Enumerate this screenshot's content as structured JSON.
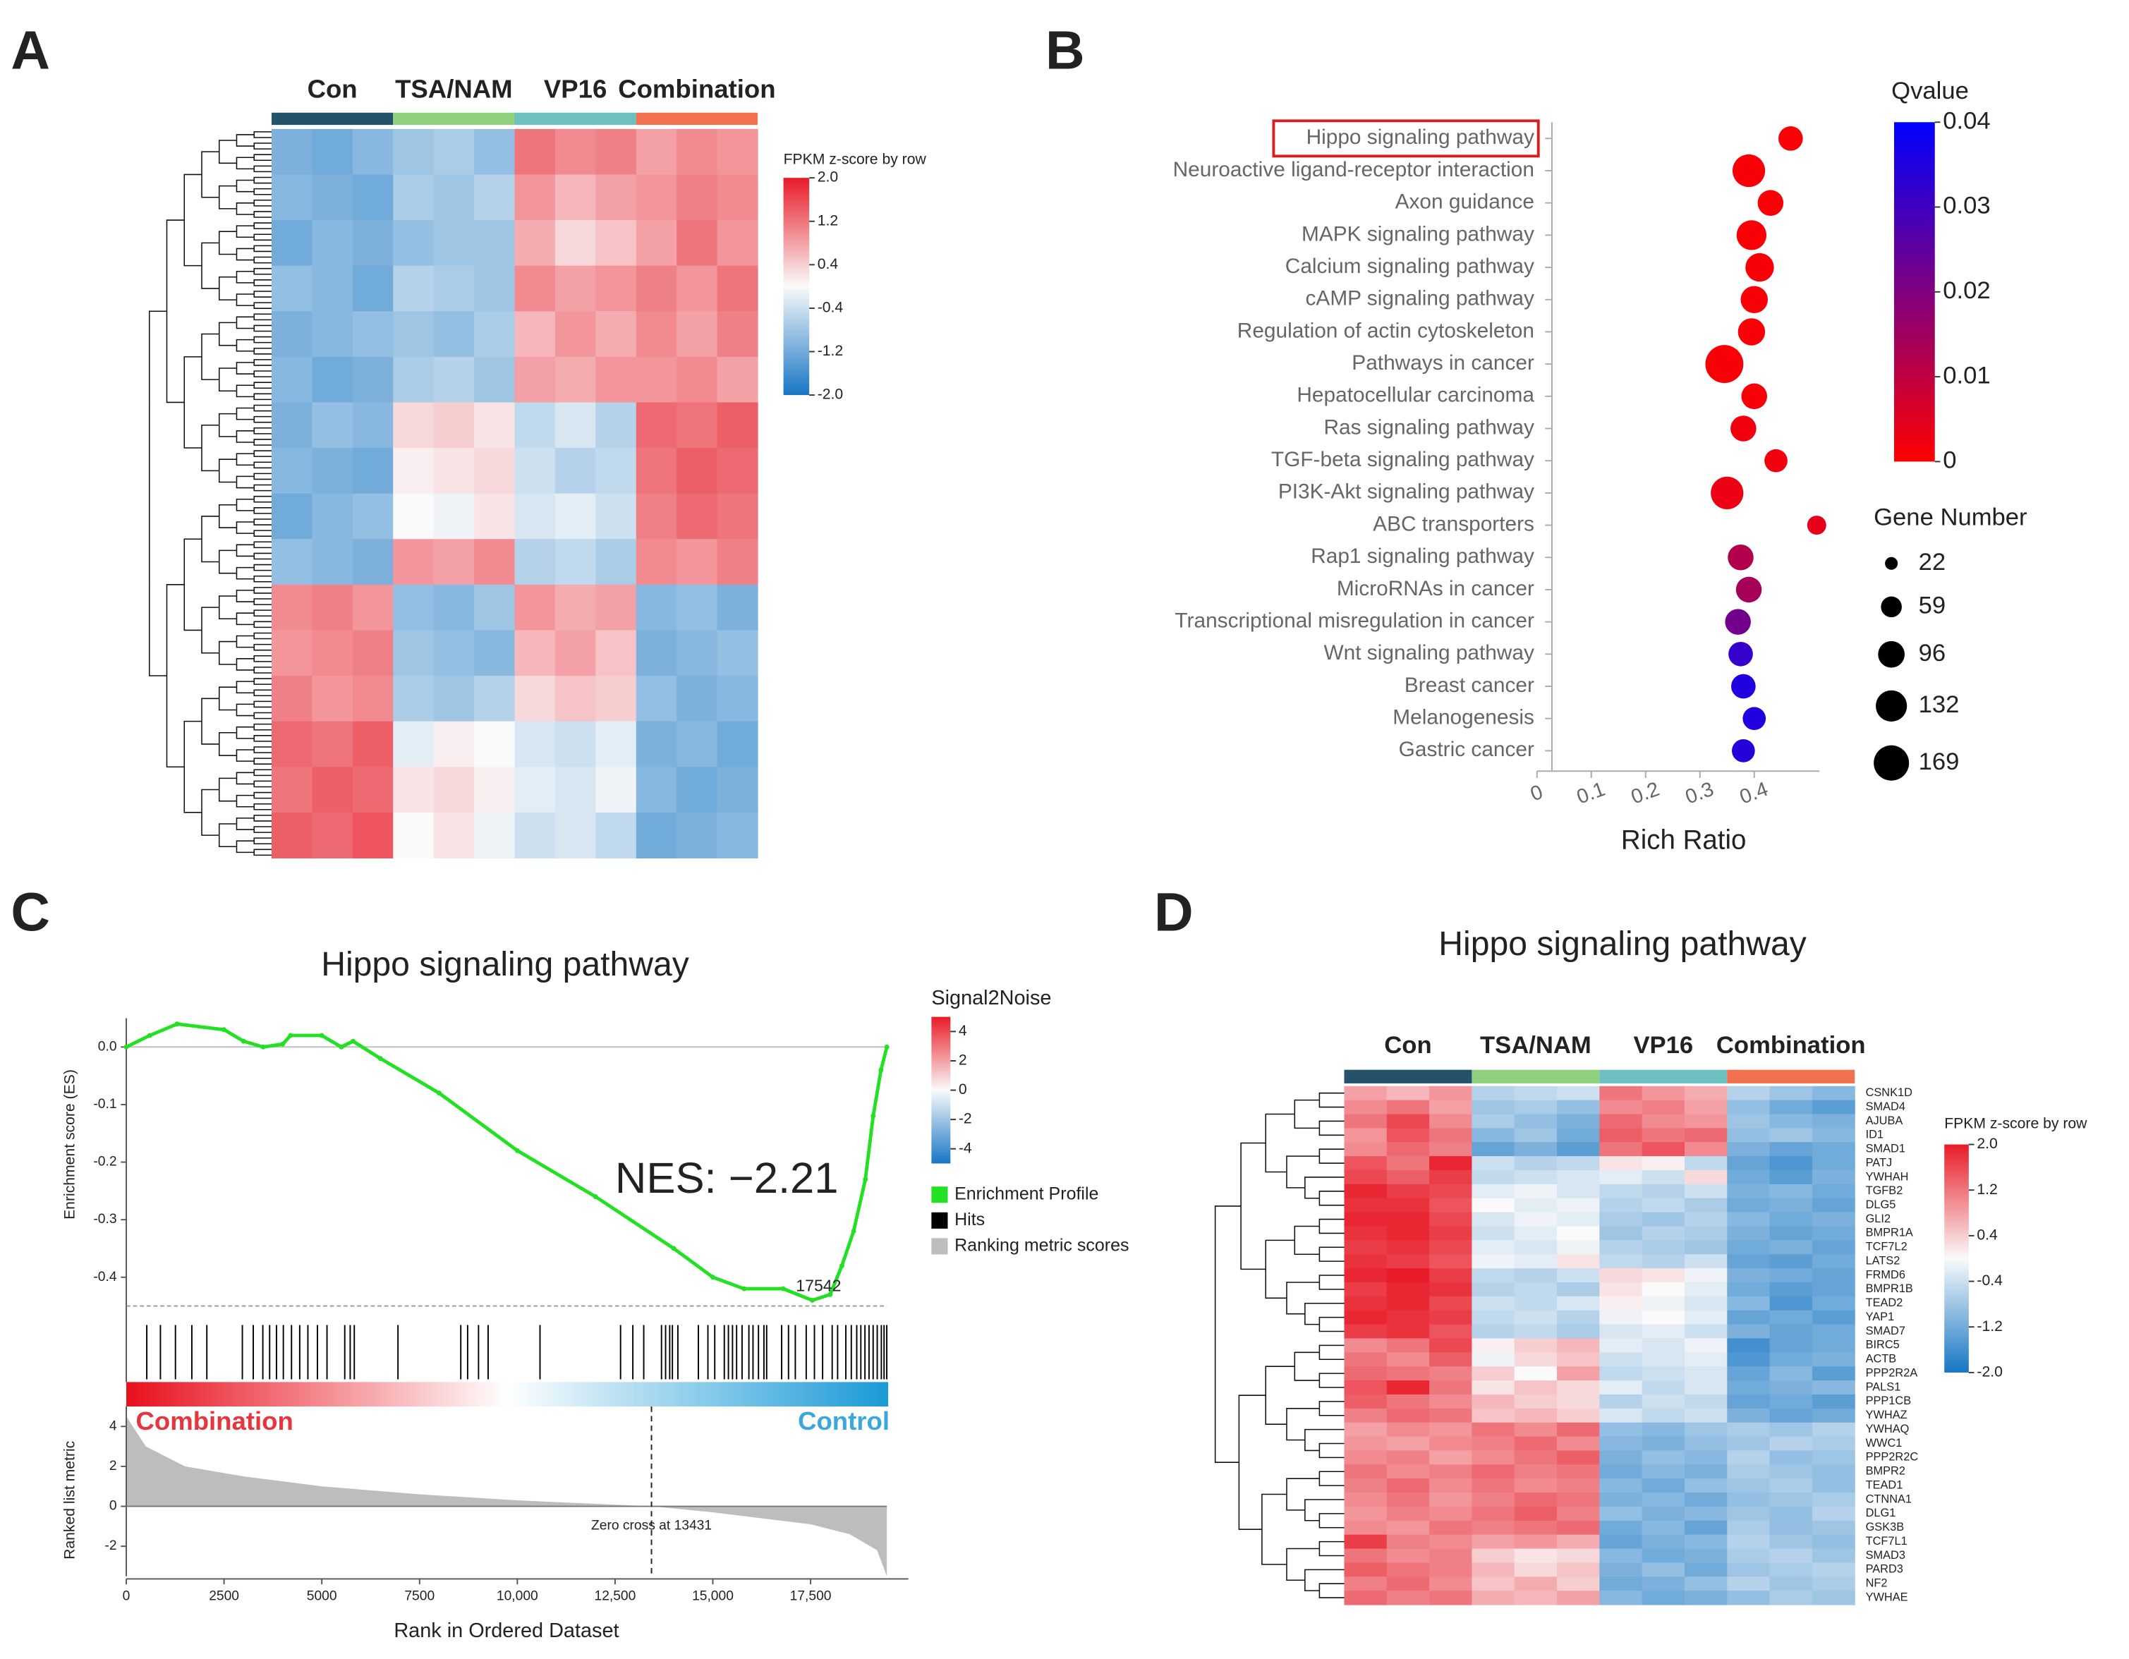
{
  "chart_data": [
    {
      "panel": "A",
      "type": "heatmap",
      "column_groups": [
        {
          "name": "Con",
          "color": "#25526b"
        },
        {
          "name": "TSA/NAM",
          "color": "#8fd07f"
        },
        {
          "name": "VP16",
          "color": "#6cc0c0"
        },
        {
          "name": "Combination",
          "color": "#f3704f"
        }
      ],
      "colorbar_title": "FPKM z-score by row",
      "clim": [
        -2,
        2
      ],
      "cticks": [
        {
          "value": 2,
          "label": "2.0"
        },
        1.2,
        0.4,
        -0.4,
        -1.2,
        {
          "value": -2,
          "label": "-2.0"
        }
      ],
      "values": [
        [
          -1.1,
          -1.2,
          -1.0,
          -0.8,
          -0.7,
          -0.9,
          1.2,
          1.0,
          1.1,
          0.8,
          1.0,
          0.9
        ],
        [
          -1.0,
          -1.1,
          -1.2,
          -0.7,
          -0.8,
          -0.6,
          0.9,
          0.6,
          0.8,
          0.9,
          1.1,
          1.0
        ],
        [
          -1.2,
          -1.0,
          -1.1,
          -0.9,
          -0.8,
          -0.8,
          0.7,
          0.3,
          0.5,
          0.8,
          1.2,
          0.9
        ],
        [
          -0.9,
          -1.0,
          -1.2,
          -0.6,
          -0.7,
          -0.8,
          1.0,
          0.8,
          0.9,
          1.1,
          0.9,
          1.2
        ],
        [
          -1.1,
          -1.0,
          -0.9,
          -0.8,
          -0.9,
          -0.7,
          0.6,
          0.9,
          0.7,
          1.0,
          0.8,
          1.1
        ],
        [
          -1.0,
          -1.2,
          -1.1,
          -0.7,
          -0.6,
          -0.8,
          0.8,
          0.7,
          0.9,
          0.9,
          1.0,
          0.8
        ],
        [
          -1.1,
          -0.9,
          -1.0,
          0.3,
          0.4,
          0.2,
          -0.5,
          -0.3,
          -0.6,
          1.3,
          1.2,
          1.4
        ],
        [
          -1.0,
          -1.1,
          -1.2,
          0.1,
          0.2,
          0.3,
          -0.4,
          -0.6,
          -0.5,
          1.2,
          1.4,
          1.3
        ],
        [
          -1.2,
          -1.0,
          -0.9,
          0.0,
          -0.1,
          0.2,
          -0.3,
          -0.2,
          -0.4,
          1.1,
          1.3,
          1.2
        ],
        [
          -0.9,
          -1.0,
          -1.1,
          0.9,
          0.8,
          1.0,
          -0.6,
          -0.5,
          -0.7,
          1.0,
          0.9,
          1.1
        ],
        [
          1.0,
          1.1,
          0.9,
          -0.9,
          -1.0,
          -0.8,
          0.9,
          0.7,
          0.8,
          -1.0,
          -0.9,
          -1.1
        ],
        [
          0.9,
          1.0,
          1.1,
          -0.8,
          -0.9,
          -1.0,
          0.6,
          0.8,
          0.5,
          -1.1,
          -1.0,
          -0.9
        ],
        [
          1.1,
          0.9,
          1.0,
          -0.7,
          -0.8,
          -0.6,
          0.3,
          0.5,
          0.4,
          -0.9,
          -1.1,
          -1.0
        ],
        [
          1.3,
          1.2,
          1.4,
          -0.2,
          0.1,
          0.0,
          -0.3,
          -0.4,
          -0.2,
          -1.1,
          -1.0,
          -1.2
        ],
        [
          1.2,
          1.4,
          1.3,
          0.2,
          0.3,
          0.1,
          -0.2,
          -0.3,
          -0.1,
          -1.0,
          -1.2,
          -1.1
        ],
        [
          1.4,
          1.3,
          1.5,
          0.0,
          0.2,
          -0.1,
          -0.4,
          -0.3,
          -0.5,
          -1.2,
          -1.1,
          -1.0
        ]
      ]
    },
    {
      "panel": "B",
      "type": "scatter",
      "categories": [
        "Hippo signaling pathway",
        "Neuroactive ligand-receptor interaction",
        "Axon guidance",
        "MAPK signaling pathway",
        "Calcium signaling pathway",
        "cAMP signaling pathway",
        "Regulation of actin cytoskeleton",
        "Pathways in cancer",
        "Hepatocellular carcinoma",
        "Ras signaling pathway",
        "TGF-beta signaling pathway",
        "PI3K-Akt signaling pathway",
        "ABC transporters",
        "Rap1 signaling pathway",
        "MicroRNAs in cancer",
        "Transcriptional misregulation in cancer",
        "Wnt signaling pathway",
        "Breast cancer",
        "Melanogenesis",
        "Gastric cancer"
      ],
      "x": [
        0.467,
        0.39,
        0.43,
        0.395,
        0.41,
        0.4,
        0.395,
        0.345,
        0.4,
        0.38,
        0.44,
        0.35,
        0.515,
        0.375,
        0.39,
        0.37,
        0.375,
        0.38,
        0.4,
        0.38
      ],
      "qvalue": [
        0.001,
        0.001,
        0.001,
        0.001,
        0.001,
        0.001,
        0.001,
        0.001,
        0.001,
        0.002,
        0.002,
        0.003,
        0.004,
        0.012,
        0.014,
        0.022,
        0.032,
        0.035,
        0.035,
        0.034
      ],
      "gene_number": [
        81,
        144,
        90,
        121,
        110,
        100,
        100,
        196,
        90,
        90,
        72,
        144,
        49,
        90,
        90,
        90,
        81,
        81,
        72,
        72
      ],
      "xlim": [
        0,
        0.52
      ],
      "xticks": [
        0,
        0.1,
        0.2,
        0.3,
        0.4
      ],
      "xlabel": "Rich Ratio",
      "colorbar_title": "Qvalue",
      "clim": [
        0,
        0.04
      ],
      "cticks": [
        0,
        0.01,
        0.02,
        0.03,
        0.04
      ],
      "size_title": "Gene Number",
      "size_legend": [
        22,
        59,
        96,
        132,
        169
      ]
    },
    {
      "panel": "C",
      "type": "line",
      "title": "Hippo signaling pathway",
      "x": [
        0,
        600,
        1300,
        2500,
        3000,
        3500,
        4000,
        4200,
        5000,
        5500,
        5800,
        6500,
        8000,
        10000,
        12000,
        14000,
        15000,
        15800,
        16800,
        17542,
        18000,
        18300,
        18600,
        18900,
        19100,
        19300,
        19450
      ],
      "values": [
        0,
        0.02,
        0.04,
        0.03,
        0.01,
        0,
        0.005,
        0.02,
        0.02,
        0,
        0.01,
        -0.02,
        -0.08,
        -0.18,
        -0.26,
        -0.35,
        -0.4,
        -0.42,
        -0.42,
        -0.44,
        -0.43,
        -0.38,
        -0.32,
        -0.23,
        -0.12,
        -0.04,
        0
      ],
      "hits": [
        524,
        873,
        1257,
        1676,
        2060,
        2968,
        3247,
        3492,
        3666,
        3841,
        4016,
        4225,
        4435,
        4644,
        4888,
        5133,
        5587,
        5726,
        5831,
        6948,
        8554,
        8729,
        9008,
        9253,
        10580,
        12640,
        12954,
        13233,
        13687,
        13792,
        13897,
        13966,
        14106,
        14630,
        14874,
        15049,
        15293,
        15398,
        15503,
        15608,
        15747,
        15922,
        16027,
        16167,
        16306,
        16376,
        16760,
        16935,
        17109,
        17388,
        17598,
        17807,
        18052,
        18191,
        18401,
        18541,
        18680,
        18785,
        18890,
        18994,
        19099,
        19204,
        19309,
        19379,
        19448
      ],
      "metric_x": [
        0,
        500,
        1500,
        3000,
        5000,
        7500,
        10000,
        13431,
        15000,
        17500,
        18500,
        19200,
        19450
      ],
      "metric": [
        4.5,
        3,
        2,
        1.5,
        1.0,
        0.6,
        0.3,
        0,
        -0.3,
        -0.9,
        -1.4,
        -2.2,
        -3.5
      ],
      "xlim": [
        0,
        20000
      ],
      "xticks": [
        0,
        2500,
        5000,
        7500,
        {
          "value": 10000,
          "label": "10,000"
        },
        {
          "value": 12500,
          "label": "12,500"
        },
        {
          "value": 15000,
          "label": "15,000"
        },
        {
          "value": 17500,
          "label": "17,500"
        }
      ],
      "ylim": [
        -0.45,
        0.05
      ],
      "yticks": [
        {
          "value": 0,
          "label": "0.0"
        },
        -0.1,
        -0.2,
        -0.3,
        -0.4
      ],
      "metric_ylim": [
        -3.5,
        5
      ],
      "metric_yticks": [
        4,
        2,
        0,
        -2
      ],
      "ylabel": "Enrichment score (ES)",
      "metric_ylabel": "Ranked list metric",
      "xlabel": "Rank in Ordered Dataset",
      "nes_label": "NES: −2.21",
      "es_min_rank": 17542,
      "zero_cross": 13431,
      "zero_cross_label": "Zero cross at 13431",
      "left_label": "Combination",
      "right_label": "Control",
      "colorbar_title": "Signal2Noise",
      "clim": [
        -5,
        5
      ],
      "cticks": [
        4,
        2,
        0,
        -2,
        -4
      ],
      "legend": [
        {
          "name": "Enrichment Profile",
          "color": "#22e022"
        },
        {
          "name": "Hits",
          "color": "#000000"
        },
        {
          "name": "Ranking metric scores",
          "color": "#bdbdbd"
        }
      ]
    },
    {
      "panel": "D",
      "type": "heatmap",
      "title": "Hippo signaling pathway",
      "column_groups": [
        {
          "name": "Con",
          "color": "#25526b"
        },
        {
          "name": "TSA/NAM",
          "color": "#8fd07f"
        },
        {
          "name": "VP16",
          "color": "#6cc0c0"
        },
        {
          "name": "Combination",
          "color": "#f3704f"
        }
      ],
      "colorbar_title": "FPKM z-score by row",
      "clim": [
        -2,
        2
      ],
      "cticks": [
        {
          "value": 2,
          "label": "2.0"
        },
        1.2,
        0.4,
        -0.4,
        -1.2,
        {
          "value": -2,
          "label": "-2.0"
        }
      ],
      "row_labels": [
        "CSNK1D",
        "SMAD4",
        "AJUBA",
        "ID1",
        "SMAD1",
        "PATJ",
        "YWHAH",
        "TGFB2",
        "DLG5",
        "GLI2",
        "BMPR1A",
        "TCF7L2",
        "LATS2",
        "FRMD6",
        "BMPR1B",
        "TEAD2",
        "YAP1",
        "SMAD7",
        "BIRC5",
        "ACTB",
        "PPP2R2A",
        "PALS1",
        "PPP1CB",
        "YWHAZ",
        "YWHAQ",
        "WWC1",
        "PPP2R2C",
        "BMPR2",
        "TEAD1",
        "CTNNA1",
        "DLG1",
        "GSK3B",
        "TCF7L1",
        "SMAD3",
        "PARD3",
        "NF2",
        "YWHAE"
      ],
      "values": [
        [
          0.8,
          0.6,
          0.9,
          -0.6,
          -0.5,
          -0.4,
          1.2,
          0.9,
          0.7,
          -0.6,
          -0.8,
          -1.0
        ],
        [
          1.0,
          1.2,
          0.8,
          -0.8,
          -0.7,
          -0.9,
          1.0,
          1.1,
          0.8,
          -0.9,
          -1.2,
          -1.4
        ],
        [
          1.2,
          1.6,
          1.0,
          -0.7,
          -0.9,
          -1.1,
          1.3,
          1.0,
          0.9,
          -0.8,
          -1.0,
          -1.1
        ],
        [
          0.9,
          1.5,
          1.2,
          -1.0,
          -0.8,
          -1.2,
          1.4,
          1.2,
          1.3,
          -0.9,
          -0.8,
          -1.0
        ],
        [
          1.0,
          1.3,
          1.1,
          -1.3,
          -1.1,
          -1.4,
          1.2,
          1.5,
          1.0,
          -1.1,
          -1.3,
          -1.2
        ],
        [
          1.5,
          1.2,
          1.9,
          -0.4,
          -0.6,
          -0.5,
          0.2,
          0.1,
          -0.5,
          -1.3,
          -1.5,
          -1.2
        ],
        [
          1.6,
          1.4,
          1.7,
          -0.5,
          -0.4,
          -0.3,
          -0.2,
          -0.4,
          0.3,
          -1.2,
          -1.4,
          -1.1
        ],
        [
          1.9,
          1.7,
          1.6,
          -0.2,
          -0.1,
          -0.3,
          -0.5,
          -0.6,
          -0.4,
          -1.1,
          -1.0,
          -1.2
        ],
        [
          1.8,
          1.8,
          1.5,
          0.0,
          -0.2,
          -0.1,
          -0.6,
          -0.5,
          -0.7,
          -1.2,
          -1.1,
          -1.3
        ],
        [
          1.9,
          1.9,
          1.6,
          -0.3,
          -0.1,
          -0.2,
          -0.7,
          -0.8,
          -0.6,
          -1.0,
          -1.2,
          -1.1
        ],
        [
          1.8,
          1.9,
          1.7,
          -0.4,
          -0.2,
          0.0,
          -0.8,
          -0.6,
          -0.7,
          -1.1,
          -1.3,
          -1.2
        ],
        [
          1.7,
          1.8,
          1.6,
          -0.2,
          -0.3,
          -0.1,
          -0.6,
          -0.7,
          -0.8,
          -1.2,
          -1.1,
          -1.3
        ],
        [
          1.8,
          1.7,
          1.5,
          -0.1,
          -0.2,
          0.2,
          -0.5,
          -0.6,
          -0.4,
          -1.3,
          -1.4,
          -1.2
        ],
        [
          1.9,
          2.0,
          1.7,
          -0.5,
          -0.6,
          -0.4,
          0.3,
          0.2,
          -0.1,
          -1.1,
          -1.2,
          -1.3
        ],
        [
          1.7,
          1.9,
          1.8,
          -0.6,
          -0.5,
          -0.7,
          0.2,
          0.0,
          -0.2,
          -1.2,
          -1.4,
          -1.3
        ],
        [
          1.8,
          1.9,
          1.6,
          -0.4,
          -0.5,
          -0.3,
          0.1,
          -0.1,
          -0.3,
          -1.0,
          -1.5,
          -1.2
        ],
        [
          1.9,
          1.8,
          1.7,
          -0.5,
          -0.4,
          -0.6,
          -0.1,
          0.0,
          -0.2,
          -1.3,
          -1.2,
          -1.4
        ],
        [
          1.7,
          1.8,
          1.5,
          -0.6,
          -0.5,
          -0.7,
          -0.3,
          -0.2,
          -0.4,
          -1.1,
          -1.3,
          -1.2
        ],
        [
          1.0,
          1.2,
          1.6,
          0.1,
          0.4,
          0.6,
          -0.2,
          -0.3,
          -0.1,
          -1.6,
          -1.3,
          -1.2
        ],
        [
          1.2,
          1.0,
          1.4,
          -0.1,
          0.3,
          0.5,
          -0.4,
          -0.3,
          -0.2,
          -1.5,
          -1.2,
          -1.1
        ],
        [
          1.3,
          1.2,
          1.1,
          0.4,
          0.0,
          0.8,
          -0.5,
          -0.4,
          -0.3,
          -1.3,
          -1.0,
          -1.4
        ],
        [
          1.5,
          1.9,
          1.2,
          0.2,
          0.5,
          0.3,
          -0.2,
          -0.5,
          -0.3,
          -1.2,
          -1.1,
          -1.0
        ],
        [
          1.4,
          1.2,
          1.0,
          0.6,
          0.4,
          0.3,
          -0.6,
          -0.4,
          -0.5,
          -1.3,
          -1.2,
          -1.4
        ],
        [
          1.1,
          1.3,
          1.2,
          0.5,
          0.6,
          0.4,
          -0.3,
          -0.5,
          -0.4,
          -1.1,
          -1.3,
          -1.2
        ],
        [
          0.8,
          1.0,
          0.9,
          1.2,
          1.0,
          1.3,
          -0.9,
          -1.0,
          -0.8,
          -0.7,
          -0.8,
          -0.6
        ],
        [
          0.9,
          0.8,
          1.0,
          1.1,
          1.3,
          1.0,
          -1.0,
          -1.1,
          -0.9,
          -0.8,
          -0.6,
          -0.7
        ],
        [
          1.0,
          1.1,
          0.8,
          1.0,
          1.2,
          1.4,
          -1.1,
          -0.9,
          -1.0,
          -0.6,
          -0.9,
          -0.8
        ],
        [
          1.2,
          1.0,
          1.1,
          1.3,
          1.1,
          1.2,
          -1.2,
          -1.0,
          -1.1,
          -0.7,
          -0.8,
          -0.9
        ],
        [
          1.1,
          1.3,
          1.0,
          1.2,
          1.0,
          1.1,
          -1.0,
          -1.2,
          -0.9,
          -0.8,
          -0.7,
          -0.9
        ],
        [
          1.0,
          1.2,
          0.9,
          1.1,
          1.3,
          1.2,
          -1.1,
          -1.0,
          -1.2,
          -0.9,
          -0.8,
          -0.7
        ],
        [
          0.9,
          1.1,
          1.0,
          1.2,
          1.4,
          1.1,
          -0.9,
          -1.1,
          -1.0,
          -0.8,
          -0.9,
          -0.6
        ],
        [
          1.0,
          0.9,
          1.2,
          1.1,
          1.2,
          1.3,
          -1.2,
          -1.0,
          -1.3,
          -0.7,
          -0.9,
          -0.8
        ],
        [
          1.7,
          1.1,
          1.0,
          0.8,
          0.9,
          0.7,
          -1.3,
          -1.1,
          -1.0,
          -0.6,
          -0.8,
          -0.9
        ],
        [
          1.2,
          1.0,
          1.1,
          0.4,
          0.2,
          0.3,
          -1.0,
          -1.2,
          -1.1,
          -0.7,
          -0.6,
          -0.8
        ],
        [
          1.4,
          1.2,
          1.1,
          0.6,
          0.3,
          0.5,
          -1.1,
          -0.9,
          -1.2,
          -0.8,
          -0.7,
          -0.6
        ],
        [
          1.1,
          1.3,
          1.0,
          0.5,
          0.7,
          0.4,
          -1.2,
          -1.1,
          -0.9,
          -0.6,
          -0.8,
          -0.7
        ],
        [
          1.3,
          1.1,
          1.2,
          0.7,
          0.6,
          0.8,
          -1.0,
          -1.2,
          -1.1,
          -0.9,
          -0.7,
          -0.8
        ]
      ]
    }
  ]
}
